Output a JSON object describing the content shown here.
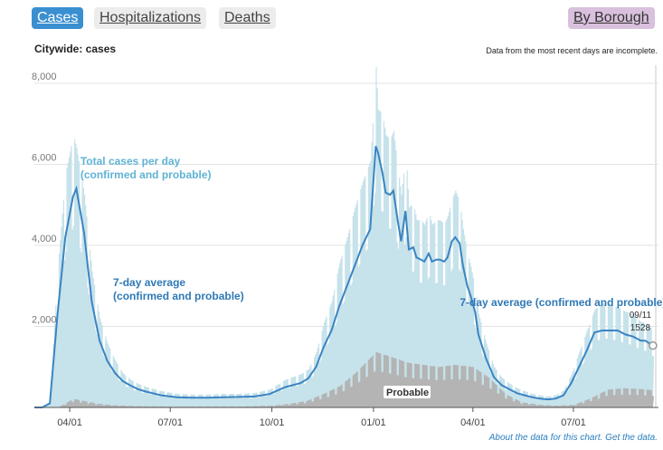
{
  "tabs": {
    "cases": "Cases",
    "hospitalizations": "Hospitalizations",
    "deaths": "Deaths",
    "by_borough": "By Borough"
  },
  "subtitle": "Citywide: cases",
  "note": "Data from the most recent days are incomplete.",
  "footer": {
    "about": "About the data for this chart.",
    "get": "Get the data."
  },
  "colors": {
    "accent": "#3a8fd0",
    "avg_line": "#3a84c2",
    "total_bars": "#c6e2ea",
    "probable_bars": "#b4b4b4",
    "label_light": "#5fb3d4",
    "label_dark": "#2f79b6",
    "borough_tab": "#d9c1dd"
  },
  "chart_data": {
    "type": "area",
    "title": "",
    "xlabel": "",
    "ylabel": "",
    "x_start": "2020-02-29",
    "x_end": "2021-09-11",
    "ylim": [
      0,
      8000
    ],
    "yticks": [
      "2,000",
      "4,000",
      "6,000",
      "8,000"
    ],
    "ytick_values": [
      2000,
      4000,
      6000,
      8000
    ],
    "xticks": [
      "04/01",
      "07/01",
      "10/01",
      "01/01",
      "04/01",
      "07/01"
    ],
    "xtick_dates": [
      "2020-04-01",
      "2020-07-01",
      "2020-10-01",
      "2021-01-01",
      "2021-04-01",
      "2021-07-01"
    ],
    "grid": true,
    "incomplete_period": [
      "2021-08-29",
      "2021-09-11"
    ],
    "series": [
      {
        "name": "7-day average (confirmed and probable)",
        "dates": [
          "2020-02-29",
          "2020-03-07",
          "2020-03-14",
          "2020-03-21",
          "2020-03-28",
          "2020-04-04",
          "2020-04-07",
          "2020-04-14",
          "2020-04-21",
          "2020-04-28",
          "2020-05-05",
          "2020-05-12",
          "2020-05-19",
          "2020-05-26",
          "2020-06-02",
          "2020-06-09",
          "2020-06-23",
          "2020-07-07",
          "2020-07-21",
          "2020-08-04",
          "2020-08-18",
          "2020-09-01",
          "2020-09-15",
          "2020-09-29",
          "2020-10-13",
          "2020-10-27",
          "2020-11-03",
          "2020-11-10",
          "2020-11-17",
          "2020-11-24",
          "2020-12-01",
          "2020-12-08",
          "2020-12-15",
          "2020-12-22",
          "2020-12-29",
          "2021-01-03",
          "2021-01-05",
          "2021-01-09",
          "2021-01-12",
          "2021-01-16",
          "2021-01-19",
          "2021-01-23",
          "2021-01-26",
          "2021-01-30",
          "2021-02-02",
          "2021-02-06",
          "2021-02-09",
          "2021-02-13",
          "2021-02-16",
          "2021-02-20",
          "2021-02-23",
          "2021-02-27",
          "2021-03-02",
          "2021-03-06",
          "2021-03-09",
          "2021-03-13",
          "2021-03-16",
          "2021-03-20",
          "2021-03-23",
          "2021-03-27",
          "2021-03-30",
          "2021-04-03",
          "2021-04-06",
          "2021-04-13",
          "2021-04-20",
          "2021-04-27",
          "2021-05-04",
          "2021-05-11",
          "2021-05-18",
          "2021-05-25",
          "2021-06-01",
          "2021-06-08",
          "2021-06-15",
          "2021-06-22",
          "2021-06-29",
          "2021-07-06",
          "2021-07-13",
          "2021-07-20",
          "2021-07-27",
          "2021-08-03",
          "2021-08-10",
          "2021-08-17",
          "2021-08-24",
          "2021-08-31",
          "2021-09-04",
          "2021-09-08",
          "2021-09-11"
        ],
        "values": [
          0,
          0,
          100,
          2300,
          4200,
          5200,
          5400,
          4300,
          2600,
          1650,
          1150,
          850,
          650,
          540,
          450,
          390,
          300,
          250,
          240,
          240,
          250,
          260,
          270,
          330,
          500,
          600,
          720,
          1000,
          1500,
          1900,
          2500,
          3000,
          3500,
          4000,
          4400,
          6450,
          6300,
          5800,
          5300,
          5250,
          5350,
          4600,
          4100,
          4850,
          3900,
          3950,
          3700,
          3650,
          3600,
          3800,
          3600,
          3650,
          3650,
          3600,
          3700,
          4100,
          4200,
          4050,
          3500,
          3000,
          2750,
          2350,
          1800,
          1200,
          750,
          550,
          450,
          350,
          300,
          250,
          220,
          200,
          220,
          300,
          600,
          1000,
          1400,
          1850,
          1900,
          1900,
          1900,
          1800,
          1750,
          1650,
          1650,
          1580,
          1528
        ]
      },
      {
        "name": "Total cases per day (confirmed and probable)",
        "dates": [
          "2020-02-29",
          "2020-03-07",
          "2020-03-14",
          "2020-03-21",
          "2020-03-28",
          "2020-04-04",
          "2020-04-07",
          "2020-04-14",
          "2020-04-21",
          "2020-04-28",
          "2020-05-05",
          "2020-05-12",
          "2020-05-19",
          "2020-05-26",
          "2020-06-02",
          "2020-06-09",
          "2020-06-23",
          "2020-07-07",
          "2020-07-21",
          "2020-08-04",
          "2020-08-18",
          "2020-09-01",
          "2020-09-15",
          "2020-09-29",
          "2020-10-13",
          "2020-10-27",
          "2020-11-03",
          "2020-11-10",
          "2020-11-17",
          "2020-11-24",
          "2020-12-01",
          "2020-12-08",
          "2020-12-15",
          "2020-12-22",
          "2020-12-29",
          "2021-01-03",
          "2021-01-05",
          "2021-01-09",
          "2021-01-12",
          "2021-01-16",
          "2021-01-19",
          "2021-01-23",
          "2021-01-26",
          "2021-01-30",
          "2021-02-02",
          "2021-02-06",
          "2021-02-09",
          "2021-02-13",
          "2021-02-16",
          "2021-02-20",
          "2021-02-23",
          "2021-02-27",
          "2021-03-02",
          "2021-03-06",
          "2021-03-09",
          "2021-03-13",
          "2021-03-16",
          "2021-03-20",
          "2021-03-23",
          "2021-03-27",
          "2021-03-30",
          "2021-04-03",
          "2021-04-06",
          "2021-04-13",
          "2021-04-20",
          "2021-04-27",
          "2021-05-04",
          "2021-05-11",
          "2021-05-18",
          "2021-05-25",
          "2021-06-01",
          "2021-06-08",
          "2021-06-15",
          "2021-06-22",
          "2021-06-29",
          "2021-07-06",
          "2021-07-13",
          "2021-07-20",
          "2021-07-27",
          "2021-08-03",
          "2021-08-10",
          "2021-08-17",
          "2021-08-24",
          "2021-08-31",
          "2021-09-04",
          "2021-09-08",
          "2021-09-11"
        ],
        "values": [
          0,
          0,
          150,
          3300,
          5500,
          6400,
          6100,
          5000,
          3200,
          2100,
          1500,
          1100,
          800,
          650,
          550,
          480,
          380,
          320,
          300,
          300,
          320,
          320,
          340,
          420,
          650,
          780,
          900,
          1300,
          2000,
          2500,
          3400,
          4000,
          4700,
          5300,
          5800,
          8000,
          7000,
          6900,
          6400,
          6300,
          6500,
          5600,
          5000,
          6000,
          4700,
          4800,
          4400,
          4400,
          4300,
          4600,
          4300,
          4400,
          4400,
          4300,
          4500,
          4900,
          5100,
          4800,
          4200,
          3600,
          3300,
          2800,
          2200,
          1500,
          950,
          700,
          560,
          450,
          380,
          320,
          280,
          260,
          290,
          400,
          780,
          1300,
          1800,
          2300,
          2450,
          2400,
          2350,
          2250,
          2200,
          2000,
          2000,
          1900,
          1800
        ]
      },
      {
        "name": "Probable",
        "dates": [
          "2020-02-29",
          "2020-03-21",
          "2020-03-28",
          "2020-04-04",
          "2020-04-14",
          "2020-04-28",
          "2020-05-12",
          "2020-06-01",
          "2020-07-01",
          "2020-08-01",
          "2020-09-01",
          "2020-10-01",
          "2020-10-15",
          "2020-11-01",
          "2020-11-15",
          "2020-12-01",
          "2020-12-15",
          "2021-01-03",
          "2021-01-15",
          "2021-02-01",
          "2021-02-15",
          "2021-03-01",
          "2021-03-15",
          "2021-04-01",
          "2021-04-15",
          "2021-05-01",
          "2021-05-15",
          "2021-06-01",
          "2021-06-15",
          "2021-07-01",
          "2021-07-15",
          "2021-08-01",
          "2021-08-15",
          "2021-09-01",
          "2021-09-11"
        ],
        "values": [
          0,
          0,
          100,
          200,
          150,
          80,
          50,
          30,
          20,
          20,
          20,
          40,
          80,
          150,
          300,
          500,
          800,
          1300,
          1200,
          1050,
          1000,
          950,
          1000,
          950,
          700,
          300,
          120,
          60,
          40,
          60,
          200,
          420,
          450,
          430,
          400
        ]
      }
    ],
    "annotations": [
      {
        "text": "Total cases per day\n(confirmed and probable)",
        "anchor": "2020-04-09"
      },
      {
        "text": "7-day average\n(confirmed and probable)",
        "anchor": "2020-04-19"
      },
      {
        "text": "7-day average (confirmed and probable)",
        "anchor": "2021-04-17"
      },
      {
        "text": "Probable",
        "anchor": "2021-01-06"
      },
      {
        "text": "09/11",
        "anchor": "2021-09-11"
      },
      {
        "text": "1528",
        "anchor": "2021-09-11"
      }
    ]
  }
}
